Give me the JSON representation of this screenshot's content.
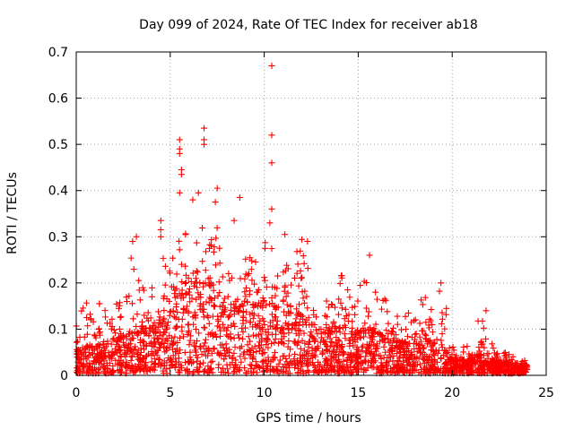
{
  "chart_data": {
    "type": "scatter",
    "title": "Day 099 of 2024, Rate Of TEC Index for receiver ab18",
    "xlabel": "GPS time / hours",
    "ylabel": "ROTI / TECUs",
    "xlim": [
      0,
      25
    ],
    "ylim": [
      0,
      0.7
    ],
    "xticks": [
      0,
      5,
      10,
      15,
      20,
      25
    ],
    "yticks": [
      0,
      0.1,
      0.2,
      0.3,
      0.4,
      0.5,
      0.6,
      0.7
    ],
    "xtick_labels": [
      "0",
      "5",
      "10",
      "15",
      "20",
      "25"
    ],
    "ytick_labels": [
      "0",
      "0.1",
      "0.2",
      "0.3",
      "0.4",
      "0.5",
      "0.6",
      "0.7"
    ],
    "grid": "dotted",
    "marker": "plus",
    "series_color": "#ff0000",
    "envelope": {
      "x": [
        0,
        0.5,
        1,
        1.5,
        2,
        2.5,
        3,
        3.5,
        4,
        4.5,
        5,
        5.5,
        6,
        6.5,
        7,
        7.5,
        8,
        8.5,
        9,
        9.5,
        10,
        10.5,
        11,
        11.5,
        12,
        12.5,
        13,
        13.5,
        14,
        14.5,
        15,
        15.5,
        16,
        16.5,
        17,
        17.5,
        18,
        18.5,
        19,
        19.5,
        20,
        20.5,
        21,
        21.5,
        22,
        22.5,
        23,
        23.5,
        24
      ],
      "typical_max": [
        0.11,
        0.17,
        0.15,
        0.19,
        0.15,
        0.18,
        0.27,
        0.2,
        0.19,
        0.32,
        0.24,
        0.35,
        0.3,
        0.36,
        0.32,
        0.34,
        0.24,
        0.26,
        0.26,
        0.25,
        0.3,
        0.27,
        0.29,
        0.26,
        0.3,
        0.2,
        0.17,
        0.17,
        0.22,
        0.22,
        0.19,
        0.24,
        0.19,
        0.18,
        0.13,
        0.15,
        0.15,
        0.2,
        0.15,
        0.2,
        0.07,
        0.07,
        0.06,
        0.14,
        0.08,
        0.05,
        0.05,
        0.04,
        0.04
      ],
      "dense_max": [
        0.05,
        0.06,
        0.06,
        0.07,
        0.07,
        0.08,
        0.09,
        0.1,
        0.1,
        0.11,
        0.13,
        0.16,
        0.18,
        0.2,
        0.2,
        0.17,
        0.13,
        0.14,
        0.16,
        0.15,
        0.16,
        0.15,
        0.14,
        0.13,
        0.13,
        0.11,
        0.09,
        0.09,
        0.1,
        0.1,
        0.09,
        0.1,
        0.09,
        0.08,
        0.07,
        0.07,
        0.07,
        0.08,
        0.07,
        0.06,
        0.03,
        0.03,
        0.03,
        0.05,
        0.03,
        0.025,
        0.025,
        0.02,
        0.02
      ]
    },
    "notable_points": [
      {
        "x": 10.4,
        "y": 0.67
      },
      {
        "x": 10.4,
        "y": 0.52
      },
      {
        "x": 10.4,
        "y": 0.46
      },
      {
        "x": 6.8,
        "y": 0.535
      },
      {
        "x": 6.8,
        "y": 0.51
      },
      {
        "x": 6.8,
        "y": 0.5
      },
      {
        "x": 5.5,
        "y": 0.51
      },
      {
        "x": 5.5,
        "y": 0.49
      },
      {
        "x": 5.5,
        "y": 0.48
      },
      {
        "x": 5.6,
        "y": 0.445
      },
      {
        "x": 5.6,
        "y": 0.435
      },
      {
        "x": 7.5,
        "y": 0.405
      },
      {
        "x": 5.5,
        "y": 0.395
      },
      {
        "x": 6.5,
        "y": 0.395
      },
      {
        "x": 8.7,
        "y": 0.385
      },
      {
        "x": 6.2,
        "y": 0.38
      },
      {
        "x": 7.4,
        "y": 0.375
      },
      {
        "x": 10.4,
        "y": 0.36
      },
      {
        "x": 4.5,
        "y": 0.335
      },
      {
        "x": 10.3,
        "y": 0.33
      },
      {
        "x": 8.4,
        "y": 0.335
      },
      {
        "x": 3.2,
        "y": 0.3
      },
      {
        "x": 3.0,
        "y": 0.29
      },
      {
        "x": 4.5,
        "y": 0.3
      },
      {
        "x": 11.1,
        "y": 0.305
      },
      {
        "x": 12.3,
        "y": 0.29
      },
      {
        "x": 15.6,
        "y": 0.26
      },
      {
        "x": 19.4,
        "y": 0.2
      },
      {
        "x": 21.8,
        "y": 0.14
      }
    ]
  }
}
